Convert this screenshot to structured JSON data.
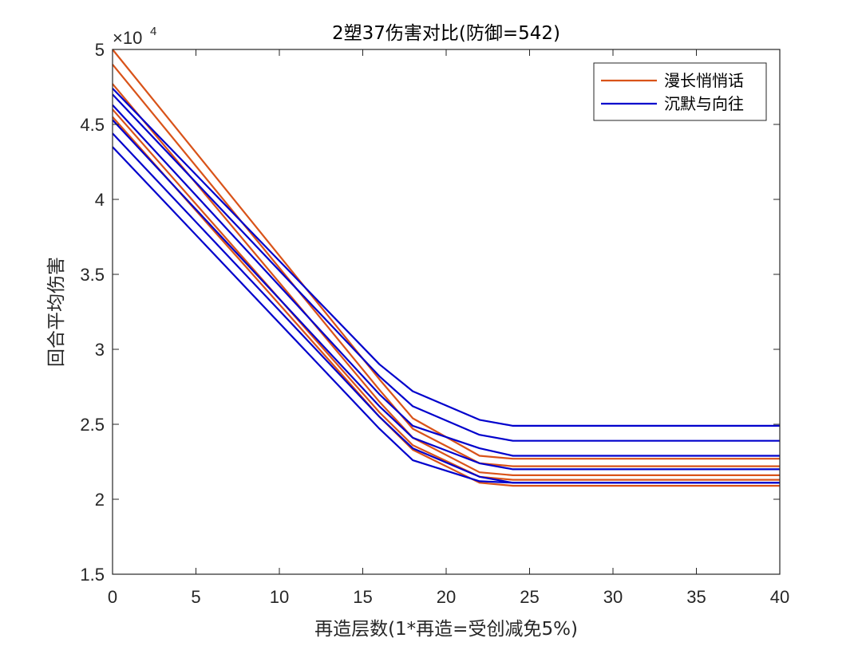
{
  "chart_data": {
    "type": "line",
    "title": "2塑37伤害对比(防御=542)",
    "xlabel": "再造层数(1*再造=受创减免5%)",
    "ylabel": "回合平均伤害",
    "xlim": [
      0,
      40
    ],
    "ylim": [
      15000,
      50000
    ],
    "xticks": [
      0,
      5,
      10,
      15,
      20,
      25,
      30,
      35,
      40
    ],
    "xtick_labels": [
      "0",
      "5",
      "10",
      "15",
      "20",
      "25",
      "30",
      "35",
      "40"
    ],
    "yticks": [
      15000,
      20000,
      25000,
      30000,
      35000,
      40000,
      45000,
      50000
    ],
    "ytick_labels": [
      "1.5",
      "2",
      "2.5",
      "3",
      "3.5",
      "4",
      "4.5",
      "5"
    ],
    "y_exponent_prefix": "×10",
    "y_exponent": "4",
    "grid": false,
    "legend_location": "top-right",
    "legend": [
      {
        "name": "漫长悄悄话",
        "color": "#D95319"
      },
      {
        "name": "沉默与向往",
        "color": "#0000CC"
      }
    ],
    "series": [
      {
        "name": "漫长悄悄话",
        "color": "#D95319",
        "x": [
          0,
          16,
          18,
          22,
          24,
          40
        ],
        "y": [
          50000,
          28000,
          25400,
          22900,
          22700,
          22700
        ]
      },
      {
        "name": "漫长悄悄话",
        "color": "#D95319",
        "x": [
          0,
          16,
          18,
          22,
          24,
          40
        ],
        "y": [
          49000,
          27300,
          24700,
          22400,
          22200,
          22200
        ]
      },
      {
        "name": "漫长悄悄话",
        "color": "#D95319",
        "x": [
          0,
          16,
          18,
          22,
          24,
          40
        ],
        "y": [
          47700,
          26500,
          24100,
          21800,
          21600,
          21600
        ]
      },
      {
        "name": "漫长悄悄话",
        "color": "#D95319",
        "x": [
          0,
          16,
          18,
          22,
          24,
          40
        ],
        "y": [
          46000,
          25800,
          23600,
          21500,
          21300,
          21300
        ]
      },
      {
        "name": "漫长悄悄话",
        "color": "#D95319",
        "x": [
          0,
          16,
          18,
          22,
          24,
          40
        ],
        "y": [
          45500,
          25500,
          23300,
          21100,
          20900,
          20900
        ]
      },
      {
        "name": "沉默与向往",
        "color": "#0000CC",
        "x": [
          0,
          16,
          18,
          22,
          24,
          40
        ],
        "y": [
          47400,
          29000,
          27200,
          25300,
          24900,
          24900
        ]
      },
      {
        "name": "沉默与向往",
        "color": "#0000CC",
        "x": [
          0,
          16,
          18,
          22,
          24,
          40
        ],
        "y": [
          47000,
          28200,
          26200,
          24300,
          23900,
          23900
        ]
      },
      {
        "name": "沉默与向往",
        "color": "#0000CC",
        "x": [
          0,
          16,
          18,
          22,
          24,
          40
        ],
        "y": [
          46300,
          27000,
          24900,
          23400,
          22900,
          22900
        ]
      },
      {
        "name": "沉默与向往",
        "color": "#0000CC",
        "x": [
          0,
          16,
          18,
          22,
          24,
          40
        ],
        "y": [
          45300,
          26200,
          24100,
          22400,
          22000,
          22000
        ]
      },
      {
        "name": "沉默与向往",
        "color": "#0000CC",
        "x": [
          0,
          16,
          18,
          22,
          24,
          40
        ],
        "y": [
          44400,
          25500,
          23400,
          21500,
          21100,
          21100
        ]
      },
      {
        "name": "沉默与向往",
        "color": "#0000CC",
        "x": [
          0,
          16,
          18,
          22,
          24,
          40
        ],
        "y": [
          43500,
          24700,
          22600,
          21200,
          21100,
          21100
        ]
      }
    ]
  }
}
